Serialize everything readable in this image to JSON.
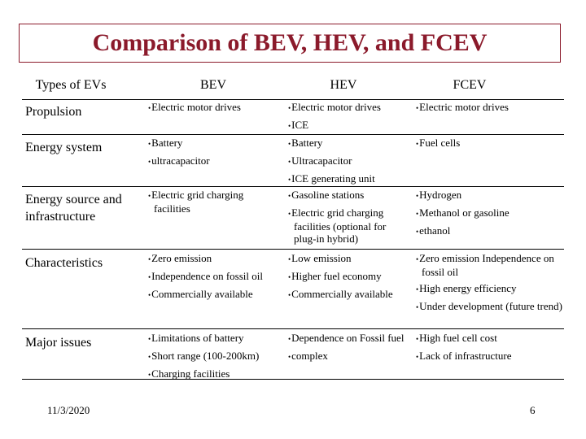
{
  "title": "Comparison of BEV, HEV, and FCEV",
  "table": {
    "headers": [
      "Types of EVs",
      "BEV",
      "HEV",
      "FCEV"
    ],
    "rows": [
      {
        "label": "Propulsion",
        "bev": [
          "Electric motor drives"
        ],
        "hev": [
          "Electric motor drives",
          "ICE"
        ],
        "fcev": [
          "Electric motor drives"
        ]
      },
      {
        "label": "Energy system",
        "bev": [
          "Battery",
          "ultracapacitor"
        ],
        "hev": [
          "Battery",
          "Ultracapacitor",
          "ICE generating unit"
        ],
        "fcev": [
          "Fuel cells"
        ]
      },
      {
        "label": "Energy source and infrastructure",
        "bev": [
          "Electric grid charging facilities"
        ],
        "hev": [
          "Gasoline stations",
          "Electric grid charging facilities (optional for plug-in hybrid)"
        ],
        "fcev": [
          "Hydrogen",
          "Methanol or gasoline",
          "ethanol"
        ]
      },
      {
        "label": "Characteristics",
        "bev": [
          "Zero emission",
          "Independence on fossil oil",
          "Commercially available"
        ],
        "hev": [
          "Low emission",
          "Higher fuel economy",
          "Commercially available"
        ],
        "fcev": [
          "Zero emission Independence on fossil oil",
          "High energy efficiency",
          "Under development (future trend)"
        ]
      },
      {
        "label": "Major issues",
        "bev": [
          "Limitations of battery",
          "Short range (100-200km)",
          "Charging facilities"
        ],
        "hev": [
          "Dependence on Fossil fuel",
          "complex"
        ],
        "fcev": [
          "High fuel cell cost",
          "Lack of infrastructure"
        ]
      }
    ]
  },
  "footer": {
    "date": "11/3/2020",
    "page_number": "6"
  },
  "colors": {
    "title": "#8b1a2b",
    "frame": "#8b1a2b",
    "rules": "#000000"
  }
}
